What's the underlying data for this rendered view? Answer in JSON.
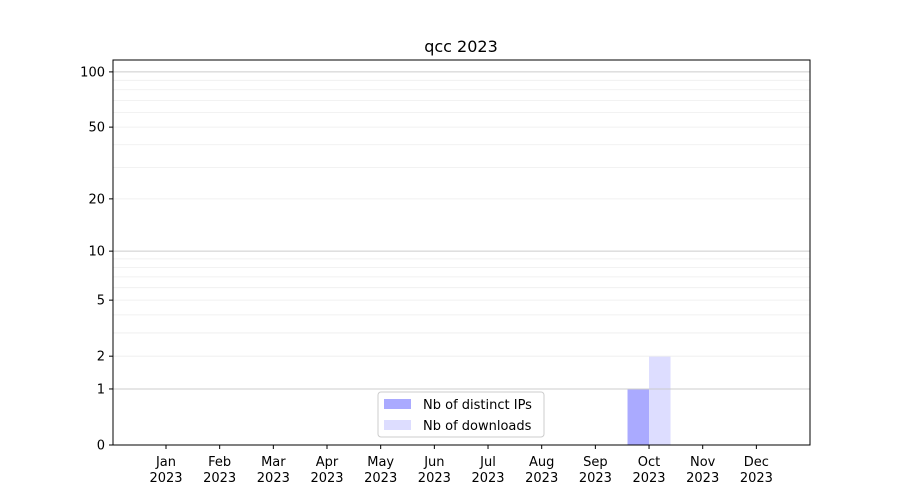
{
  "chart_data": {
    "type": "bar",
    "title": "qcc 2023",
    "xlabel": "",
    "ylabel": "",
    "yscale": "log(1+y)",
    "ylim": [
      0,
      116
    ],
    "yticks": [
      0,
      1,
      2,
      5,
      10,
      20,
      50,
      100
    ],
    "ytick_labels": [
      "0",
      "1",
      "2",
      "5",
      "10",
      "20",
      "50",
      "100"
    ],
    "grid": true,
    "categories": [
      "Jan\n2023",
      "Feb\n2023",
      "Mar\n2023",
      "Apr\n2023",
      "May\n2023",
      "Jun\n2023",
      "Jul\n2023",
      "Aug\n2023",
      "Sep\n2023",
      "Oct\n2023",
      "Nov\n2023",
      "Dec\n2023"
    ],
    "series": [
      {
        "name": "Nb of distinct IPs",
        "color": "#aaaaff",
        "values": [
          0,
          0,
          0,
          0,
          0,
          0,
          0,
          0,
          0,
          1,
          0,
          0
        ]
      },
      {
        "name": "Nb of downloads",
        "color": "#ddddff",
        "values": [
          0,
          0,
          0,
          0,
          0,
          0,
          0,
          0,
          0,
          2,
          0,
          0
        ]
      }
    ],
    "legend_position": "bottom-center"
  }
}
